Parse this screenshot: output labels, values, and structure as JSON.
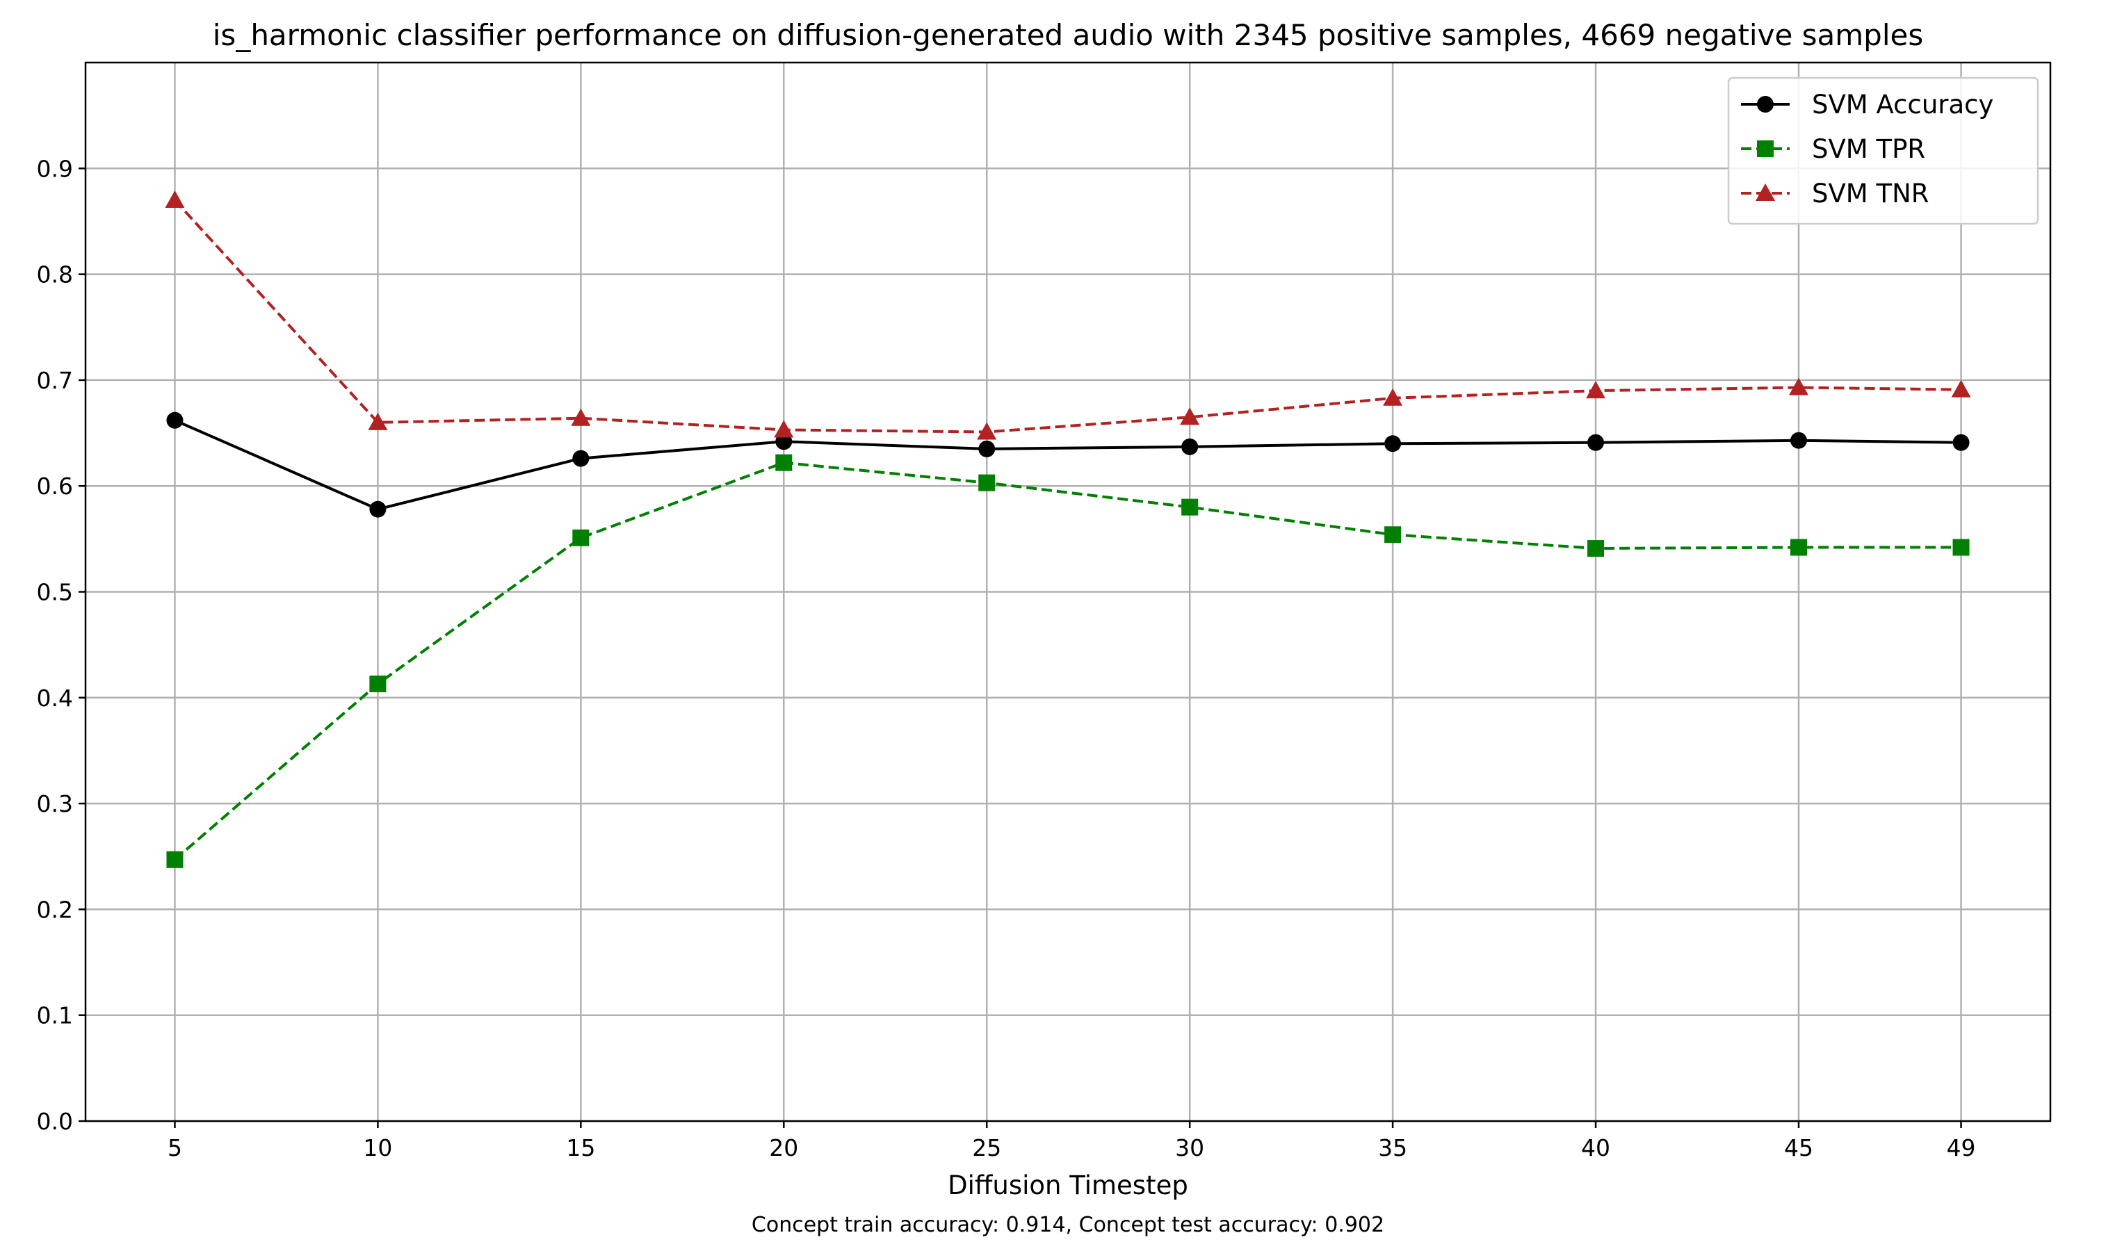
{
  "chart_data": {
    "type": "line",
    "title": "is_harmonic classifier performance on diffusion-generated audio with 2345 positive samples, 4669 negative samples",
    "xlabel": "Diffusion Timestep",
    "ylabel": "",
    "caption": "Concept train accuracy: 0.914, Concept test accuracy: 0.902",
    "x": [
      5,
      10,
      15,
      20,
      25,
      30,
      35,
      40,
      45,
      49
    ],
    "x_tick_labels": [
      "5",
      "10",
      "15",
      "20",
      "25",
      "30",
      "35",
      "40",
      "45",
      "49"
    ],
    "y_ticks": [
      0.0,
      0.1,
      0.2,
      0.3,
      0.4,
      0.5,
      0.6,
      0.7,
      0.8,
      0.9
    ],
    "y_tick_labels": [
      "0.0",
      "0.1",
      "0.2",
      "0.3",
      "0.4",
      "0.5",
      "0.6",
      "0.7",
      "0.8",
      "0.9"
    ],
    "ylim": [
      0,
      1.0
    ],
    "xlim": [
      2.8,
      51.2
    ],
    "grid": true,
    "legend_position": "top-right",
    "series": [
      {
        "name": "SVM Accuracy",
        "color": "#000000",
        "linestyle": "solid",
        "marker": "circle",
        "values": [
          0.662,
          0.578,
          0.626,
          0.642,
          0.635,
          0.637,
          0.64,
          0.641,
          0.643,
          0.641
        ]
      },
      {
        "name": "SVM TPR",
        "color": "#008000",
        "linestyle": "dashed",
        "marker": "square",
        "values": [
          0.247,
          0.413,
          0.551,
          0.622,
          0.603,
          0.58,
          0.554,
          0.541,
          0.542,
          0.542
        ]
      },
      {
        "name": "SVM TNR",
        "color": "#b22222",
        "linestyle": "dashed",
        "marker": "triangle",
        "values": [
          0.87,
          0.66,
          0.664,
          0.653,
          0.651,
          0.665,
          0.683,
          0.69,
          0.693,
          0.691
        ]
      }
    ]
  }
}
